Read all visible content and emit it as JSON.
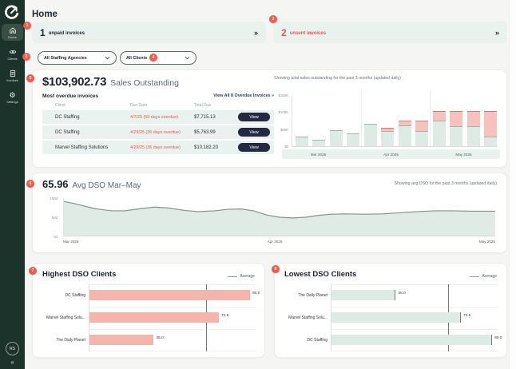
{
  "page": {
    "title": "Home"
  },
  "sidebar": {
    "items": [
      {
        "label": "Home",
        "active": true
      },
      {
        "label": "Clients",
        "active": false
      },
      {
        "label": "Invoices",
        "active": false
      },
      {
        "label": "Settings",
        "active": false
      }
    ],
    "avatar_initials": "RS",
    "collapse_glyph": "«"
  },
  "annotations": [
    "1",
    "2",
    "3",
    "4",
    "5",
    "6",
    "7",
    "8"
  ],
  "alerts": [
    {
      "count": "1",
      "label": "unpaid invoices",
      "chevron": "»"
    },
    {
      "count": "2",
      "label": "unsent invoices",
      "chevron": "»"
    }
  ],
  "filters": [
    {
      "value": "All Staffing Agencies"
    },
    {
      "value": "All Clients"
    }
  ],
  "sales": {
    "amount": "$103,902.73",
    "title": "Sales Outstanding",
    "table_title": "Most overdue invoices",
    "view_all": "View All 8 Overdue Invoices »",
    "columns": [
      "Client",
      "Due Date",
      "Total Due",
      ""
    ],
    "rows": [
      {
        "client": "DC Staffing",
        "due": "4/7/25 (50 days overdue)",
        "total": "$7,715.13",
        "action": "View"
      },
      {
        "client": "DC Staffing",
        "due": "4/29/25 (36 days overdue)",
        "total": "$5,763.99",
        "action": "View"
      },
      {
        "client": "Marvel Staffing Solutions",
        "due": "4/29/25 (36 days overdue)",
        "total": "$10,182.20",
        "action": "View"
      }
    ]
  },
  "dso": {
    "value": "65.96",
    "title": "Avg DSO Mar–May",
    "note": "Showing avg DSO for the past 3 months (updated daily)"
  },
  "colors": {
    "sidebar": "#1c332b",
    "accent_red": "#f15b4a",
    "mint": "#e9f2ee",
    "navy": "#232940",
    "bar_green": "#dcebe3",
    "bar_pink": "#f5b5ad"
  },
  "chart_data": [
    {
      "id": "sales_outstanding",
      "type": "bar",
      "stacked": true,
      "note": "Showing total sales outstanding for the past 3 months (updated daily)",
      "categories": [
        "Mar 2025",
        "Apr 2025",
        "May 2025"
      ],
      "bars_per_month": 4,
      "yticks": [
        "$0",
        "$50K",
        "$100K",
        "$150K"
      ],
      "ylim": [
        0,
        150
      ],
      "unit": "thousand USD",
      "series": [
        {
          "name": "outstanding",
          "color": "#dcebe3",
          "values": [
            28,
            19,
            47,
            37,
            65,
            44,
            62,
            45,
            76,
            58,
            58,
            28
          ]
        },
        {
          "name": "overdue",
          "color": "#f6c3bc",
          "values": [
            0,
            0,
            0,
            0,
            0,
            10,
            12,
            30,
            28,
            46,
            46,
            76
          ]
        }
      ]
    },
    {
      "id": "avg_dso",
      "type": "area",
      "yticks": [
        "0d",
        "50d",
        "100d"
      ],
      "ylim": [
        0,
        100
      ],
      "xticks": [
        "Mar 2025",
        "Apr 2025",
        "May 2025"
      ],
      "points": [
        [
          0,
          91
        ],
        [
          3,
          84
        ],
        [
          7,
          72
        ],
        [
          11,
          66
        ],
        [
          14,
          66
        ],
        [
          18,
          72
        ],
        [
          21,
          76
        ],
        [
          24,
          74
        ],
        [
          28,
          67
        ],
        [
          31,
          64
        ],
        [
          35,
          66
        ],
        [
          38,
          70
        ],
        [
          41,
          71
        ],
        [
          44,
          66
        ],
        [
          47,
          55
        ],
        [
          50,
          49
        ],
        [
          53,
          47
        ],
        [
          56,
          49
        ],
        [
          59,
          54
        ],
        [
          62,
          57
        ],
        [
          65,
          58
        ],
        [
          70,
          57
        ],
        [
          74,
          58
        ],
        [
          78,
          61
        ],
        [
          82,
          64
        ],
        [
          86,
          66
        ],
        [
          90,
          66
        ],
        [
          95,
          65
        ],
        [
          100,
          65
        ]
      ]
    },
    {
      "id": "highest_dso",
      "type": "bar",
      "orientation": "horizontal",
      "title": "Highest DSO Clients",
      "legend": "Average",
      "categories": [
        "DC Staffing",
        "Marvel Staffing Solu...",
        "The Daily Planet"
      ],
      "values": [
        90.0,
        72.5,
        36.0
      ],
      "value_labels": [
        "90.0",
        "72.5",
        "36.0"
      ],
      "average": 65.96,
      "xmax": 94,
      "bar_color": "#f5b5ad",
      "end_cap": false
    },
    {
      "id": "lowest_dso",
      "type": "bar",
      "orientation": "horizontal",
      "title": "Lowest DSO Clients",
      "legend": "Average",
      "categories": [
        "The Daily Planet",
        "Marvel Staffing Solu...",
        "DC Staffing"
      ],
      "values": [
        36.0,
        72.5,
        90.0
      ],
      "value_labels": [
        "36.0",
        "72.5",
        "90.0"
      ],
      "average": 65.96,
      "xmax": 94,
      "bar_color": "#dcebe3",
      "end_cap": true
    }
  ]
}
